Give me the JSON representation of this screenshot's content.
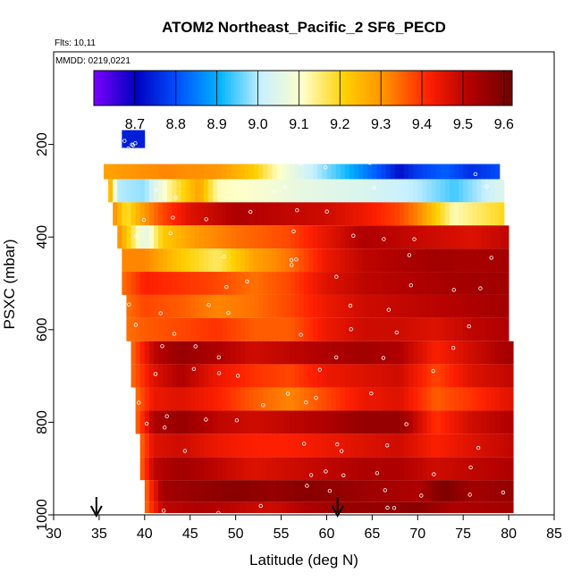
{
  "chart_data": {
    "type": "heatmap",
    "title": "ATOM2 Northeast_Pacific_2 SF6_PECD",
    "notes": [
      "Flts: 10,11",
      "MMDD: 0219,0221"
    ],
    "xlabel": "Latitude (deg N)",
    "ylabel": "PSXC (mbar)",
    "xlim": [
      30,
      85
    ],
    "ylim": [
      1000,
      0
    ],
    "x_ticks": [
      30,
      35,
      40,
      45,
      50,
      55,
      60,
      65,
      70,
      75,
      80,
      85
    ],
    "y_ticks": [
      200,
      400,
      600,
      800,
      1000
    ],
    "colorbar": {
      "range": [
        8.6,
        9.62
      ],
      "ticks": [
        8.7,
        8.8,
        8.9,
        9.0,
        9.1,
        9.2,
        9.3,
        9.4,
        9.5,
        9.6
      ],
      "tick_labels": [
        "8.7",
        "8.8",
        "8.9",
        "9.0",
        "9.1",
        "9.2",
        "9.3",
        "9.4",
        "9.5",
        "9.6"
      ],
      "colors": [
        "#7b00ff",
        "#0000c0",
        "#0050ff",
        "#00b4ff",
        "#c8f0ff",
        "#ffffc8",
        "#ffd000",
        "#ff8c00",
        "#ff2000",
        "#b00000",
        "#700000"
      ]
    },
    "markers": [
      {
        "x": 34.7,
        "label": "arrow"
      },
      {
        "x": 61.2,
        "label": "arrow"
      }
    ],
    "rows": [
      {
        "p": 200,
        "lat_start": 37.5,
        "lat_end": 40.0,
        "segments": [
          [
            37.5,
            8.74
          ],
          [
            40.0,
            8.74
          ]
        ]
      },
      {
        "p": 250,
        "lat_start": 35.5,
        "lat_end": 79.0,
        "segments": [
          [
            35.5,
            9.28
          ],
          [
            42,
            9.32
          ],
          [
            48,
            9.3
          ],
          [
            52,
            9.22
          ],
          [
            55,
            9.1
          ],
          [
            58,
            9.02
          ],
          [
            62,
            8.92
          ],
          [
            66,
            8.8
          ],
          [
            68,
            8.72
          ],
          [
            70,
            8.78
          ],
          [
            73,
            8.82
          ],
          [
            76,
            8.76
          ],
          [
            79,
            8.8
          ]
        ]
      },
      {
        "p": 300,
        "lat_start": 36.0,
        "lat_end": 79.5,
        "segments": [
          [
            36,
            9.32
          ],
          [
            37,
            9.0
          ],
          [
            40,
            8.98
          ],
          [
            43,
            9.15
          ],
          [
            46,
            9.28
          ],
          [
            48,
            9.12
          ],
          [
            52,
            9.1
          ],
          [
            58,
            9.06
          ],
          [
            64,
            9.04
          ],
          [
            70,
            9.0
          ],
          [
            74,
            8.94
          ],
          [
            79.5,
            9.05
          ]
        ]
      },
      {
        "p": 350,
        "lat_start": 36.5,
        "lat_end": 79.5,
        "segments": [
          [
            36.5,
            9.32
          ],
          [
            38,
            9.18
          ],
          [
            40,
            9.3
          ],
          [
            42,
            9.38
          ],
          [
            45,
            9.46
          ],
          [
            50,
            9.52
          ],
          [
            55,
            9.5
          ],
          [
            60,
            9.48
          ],
          [
            64,
            9.44
          ],
          [
            68,
            9.38
          ],
          [
            70,
            9.32
          ],
          [
            74,
            9.12
          ],
          [
            79.5,
            9.2
          ]
        ]
      },
      {
        "p": 400,
        "lat_start": 37.0,
        "lat_end": 80.0,
        "segments": [
          [
            37,
            9.32
          ],
          [
            40,
            9.05
          ],
          [
            42,
            9.22
          ],
          [
            46,
            9.3
          ],
          [
            50,
            9.34
          ],
          [
            56,
            9.38
          ],
          [
            60,
            9.45
          ],
          [
            64,
            9.52
          ],
          [
            68,
            9.5
          ],
          [
            72,
            9.48
          ],
          [
            76,
            9.46
          ],
          [
            80,
            9.5
          ]
        ]
      },
      {
        "p": 450,
        "lat_start": 37.5,
        "lat_end": 80.0,
        "segments": [
          [
            37.5,
            9.32
          ],
          [
            40,
            9.32
          ],
          [
            44,
            9.22
          ],
          [
            48,
            9.16
          ],
          [
            52,
            9.28
          ],
          [
            56,
            9.34
          ],
          [
            60,
            9.44
          ],
          [
            64,
            9.5
          ],
          [
            68,
            9.52
          ],
          [
            72,
            9.54
          ],
          [
            76,
            9.53
          ],
          [
            80,
            9.54
          ]
        ]
      },
      {
        "p": 500,
        "lat_start": 37.5,
        "lat_end": 80.0,
        "segments": [
          [
            37.5,
            9.34
          ],
          [
            40,
            9.42
          ],
          [
            44,
            9.4
          ],
          [
            48,
            9.38
          ],
          [
            52,
            9.34
          ],
          [
            56,
            9.38
          ],
          [
            60,
            9.46
          ],
          [
            64,
            9.5
          ],
          [
            70,
            9.52
          ],
          [
            76,
            9.54
          ],
          [
            80,
            9.54
          ]
        ]
      },
      {
        "p": 550,
        "lat_start": 38.0,
        "lat_end": 80.0,
        "segments": [
          [
            38,
            9.34
          ],
          [
            40,
            9.38
          ],
          [
            44,
            9.36
          ],
          [
            48,
            9.32
          ],
          [
            52,
            9.34
          ],
          [
            56,
            9.38
          ],
          [
            60,
            9.44
          ],
          [
            64,
            9.48
          ],
          [
            70,
            9.5
          ],
          [
            76,
            9.52
          ],
          [
            80,
            9.54
          ]
        ]
      },
      {
        "p": 600,
        "lat_start": 38.0,
        "lat_end": 80.0,
        "segments": [
          [
            38,
            9.34
          ],
          [
            40,
            9.36
          ],
          [
            44,
            9.38
          ],
          [
            48,
            9.4
          ],
          [
            52,
            9.36
          ],
          [
            56,
            9.36
          ],
          [
            60,
            9.44
          ],
          [
            64,
            9.48
          ],
          [
            68,
            9.48
          ],
          [
            72,
            9.46
          ],
          [
            76,
            9.5
          ],
          [
            80,
            9.52
          ]
        ]
      },
      {
        "p": 650,
        "lat_start": 38.5,
        "lat_end": 80.5,
        "segments": [
          [
            38.5,
            9.34
          ],
          [
            41,
            9.5
          ],
          [
            44,
            9.56
          ],
          [
            48,
            9.52
          ],
          [
            52,
            9.48
          ],
          [
            56,
            9.5
          ],
          [
            60,
            9.52
          ],
          [
            64,
            9.54
          ],
          [
            68,
            9.52
          ],
          [
            72,
            9.42
          ],
          [
            76,
            9.48
          ],
          [
            80.5,
            9.54
          ]
        ]
      },
      {
        "p": 700,
        "lat_start": 38.5,
        "lat_end": 80.5,
        "segments": [
          [
            38.5,
            9.34
          ],
          [
            41,
            9.46
          ],
          [
            44,
            9.52
          ],
          [
            48,
            9.44
          ],
          [
            52,
            9.4
          ],
          [
            56,
            9.38
          ],
          [
            60,
            9.44
          ],
          [
            64,
            9.46
          ],
          [
            68,
            9.48
          ],
          [
            72,
            9.38
          ],
          [
            76,
            9.46
          ],
          [
            80.5,
            9.5
          ]
        ]
      },
      {
        "p": 750,
        "lat_start": 39.0,
        "lat_end": 80.5,
        "segments": [
          [
            39,
            9.34
          ],
          [
            41,
            9.44
          ],
          [
            44,
            9.46
          ],
          [
            48,
            9.42
          ],
          [
            52,
            9.36
          ],
          [
            56,
            9.32
          ],
          [
            60,
            9.38
          ],
          [
            64,
            9.44
          ],
          [
            68,
            9.46
          ],
          [
            72,
            9.36
          ],
          [
            76,
            9.4
          ],
          [
            80.5,
            9.46
          ]
        ]
      },
      {
        "p": 800,
        "lat_start": 39.0,
        "lat_end": 80.5,
        "segments": [
          [
            39,
            9.34
          ],
          [
            41,
            9.52
          ],
          [
            44,
            9.56
          ],
          [
            48,
            9.5
          ],
          [
            52,
            9.48
          ],
          [
            56,
            9.5
          ],
          [
            60,
            9.52
          ],
          [
            64,
            9.56
          ],
          [
            68,
            9.56
          ],
          [
            72,
            9.4
          ],
          [
            76,
            9.48
          ],
          [
            80.5,
            9.52
          ]
        ]
      },
      {
        "p": 850,
        "lat_start": 39.5,
        "lat_end": 80.5,
        "segments": [
          [
            39.5,
            9.34
          ],
          [
            41,
            9.46
          ],
          [
            44,
            9.48
          ],
          [
            48,
            9.44
          ],
          [
            52,
            9.42
          ],
          [
            56,
            9.42
          ],
          [
            60,
            9.44
          ],
          [
            64,
            9.46
          ],
          [
            68,
            9.48
          ],
          [
            72,
            9.42
          ],
          [
            76,
            9.46
          ],
          [
            80.5,
            9.5
          ]
        ]
      },
      {
        "p": 900,
        "lat_start": 39.5,
        "lat_end": 80.5,
        "segments": [
          [
            39.5,
            9.34
          ],
          [
            41,
            9.5
          ],
          [
            44,
            9.54
          ],
          [
            48,
            9.5
          ],
          [
            52,
            9.46
          ],
          [
            56,
            9.48
          ],
          [
            60,
            9.5
          ],
          [
            64,
            9.52
          ],
          [
            68,
            9.52
          ],
          [
            72,
            9.48
          ],
          [
            76,
            9.5
          ],
          [
            80.5,
            9.52
          ]
        ]
      },
      {
        "p": 950,
        "lat_start": 40.0,
        "lat_end": 80.5,
        "segments": [
          [
            40,
            9.34
          ],
          [
            42,
            9.54
          ],
          [
            46,
            9.56
          ],
          [
            50,
            9.58
          ],
          [
            54,
            9.56
          ],
          [
            58,
            9.58
          ],
          [
            62,
            9.56
          ],
          [
            66,
            9.54
          ],
          [
            70,
            9.52
          ],
          [
            73,
            9.6
          ],
          [
            76,
            9.54
          ],
          [
            80.5,
            9.56
          ]
        ]
      },
      {
        "p": 995,
        "lat_start": 40.0,
        "lat_end": 80.5,
        "segments": [
          [
            40,
            9.34
          ],
          [
            42,
            9.5
          ],
          [
            46,
            9.52
          ],
          [
            50,
            9.5
          ],
          [
            54,
            9.48
          ],
          [
            58,
            9.52
          ],
          [
            62,
            9.56
          ],
          [
            66,
            9.56
          ],
          [
            70,
            9.58
          ],
          [
            74,
            9.52
          ],
          [
            80.5,
            9.54
          ]
        ]
      }
    ]
  }
}
